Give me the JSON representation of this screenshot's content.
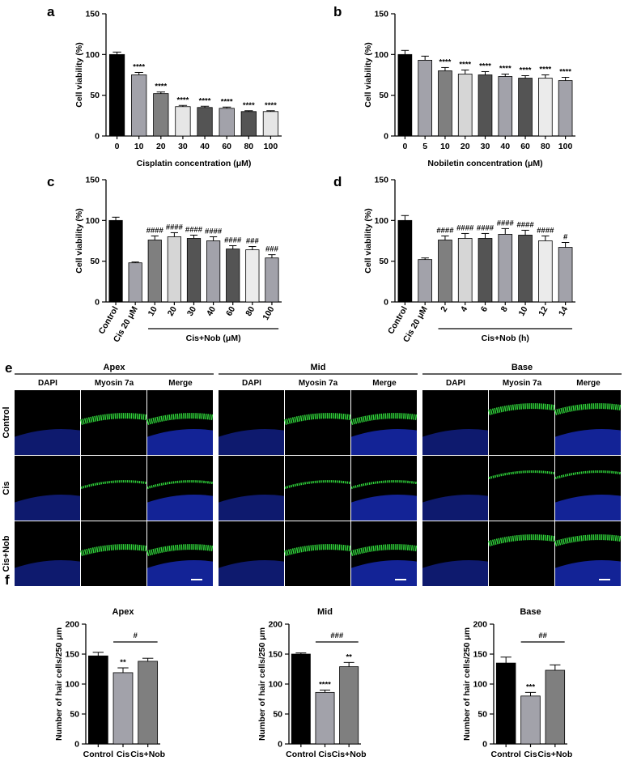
{
  "panel_labels": [
    "a",
    "b",
    "c",
    "d",
    "e",
    "f"
  ],
  "chart_data": [
    {
      "id": "a",
      "type": "bar",
      "categories": [
        "0",
        "10",
        "20",
        "30",
        "40",
        "60",
        "80",
        "100"
      ],
      "values": [
        100,
        75,
        52,
        36,
        35,
        34,
        30,
        30
      ],
      "errors": [
        3,
        3,
        2,
        1.5,
        1.5,
        1.5,
        1,
        1
      ],
      "sig": [
        "",
        "****",
        "****",
        "****",
        "****",
        "****",
        "****",
        "****"
      ],
      "colors": [
        "#000000",
        "#a2a2aa",
        "#7f7f7f",
        "#e6e6e6",
        "#545454",
        "#a2a2aa",
        "#545454",
        "#e6e6e6"
      ],
      "xlabel": "Cisplatin concentration (μM)",
      "ylabel": "Cell viability (%)",
      "ylim": [
        0,
        150
      ],
      "yticks": [
        0,
        50,
        100,
        150
      ]
    },
    {
      "id": "b",
      "type": "bar",
      "categories": [
        "0",
        "5",
        "10",
        "20",
        "30",
        "40",
        "60",
        "80",
        "100"
      ],
      "values": [
        100,
        93,
        80,
        76,
        75,
        73,
        71,
        71,
        68
      ],
      "errors": [
        5,
        5,
        4,
        5,
        4,
        3,
        3,
        4,
        4
      ],
      "sig": [
        "",
        "",
        "****",
        "****",
        "****",
        "****",
        "****",
        "****",
        "****"
      ],
      "colors": [
        "#000000",
        "#a2a2aa",
        "#7f7f7f",
        "#d6d6d6",
        "#545454",
        "#a2a2aa",
        "#545454",
        "#ebebeb",
        "#a2a2aa"
      ],
      "xlabel": "Nobiletin concentration (μM)",
      "ylabel": "Cell viability (%)",
      "ylim": [
        0,
        150
      ],
      "yticks": [
        0,
        50,
        100,
        150
      ]
    },
    {
      "id": "c",
      "type": "bar",
      "categories": [
        "Control",
        "Cis 20 μM",
        "10",
        "20",
        "30",
        "40",
        "60",
        "80",
        "100"
      ],
      "values": [
        100,
        48,
        76,
        80,
        78,
        75,
        65,
        64,
        54
      ],
      "errors": [
        4,
        1,
        5,
        5,
        4,
        5,
        4,
        4,
        4
      ],
      "sig": [
        "",
        "",
        "####",
        "####",
        "####",
        "####",
        "####",
        "###",
        "###"
      ],
      "colors": [
        "#000000",
        "#a2a2aa",
        "#7f7f7f",
        "#d6d6d6",
        "#545454",
        "#a2a2aa",
        "#545454",
        "#ebebeb",
        "#a2a2aa"
      ],
      "group_label": "Cis+Nob (μM)",
      "ylabel": "Cell viability (%)",
      "ylim": [
        0,
        150
      ],
      "yticks": [
        0,
        50,
        100,
        150
      ]
    },
    {
      "id": "d",
      "type": "bar",
      "categories": [
        "Control",
        "Cis 20 μM",
        "2",
        "4",
        "6",
        "8",
        "10",
        "12",
        "14"
      ],
      "values": [
        100,
        52,
        76,
        78,
        78,
        83,
        82,
        75,
        67
      ],
      "errors": [
        6,
        2,
        5,
        6,
        6,
        7,
        6,
        6,
        6
      ],
      "sig": [
        "",
        "",
        "####",
        "####",
        "####",
        "####",
        "####",
        "####",
        "#"
      ],
      "colors": [
        "#000000",
        "#a2a2aa",
        "#7f7f7f",
        "#d6d6d6",
        "#545454",
        "#a2a2aa",
        "#545454",
        "#ebebeb",
        "#a2a2aa"
      ],
      "group_label": "Cis+Nob (h)",
      "ylabel": "Cell viability (%)",
      "ylim": [
        0,
        150
      ],
      "yticks": [
        0,
        50,
        100,
        150
      ]
    },
    {
      "id": "f1",
      "type": "bar",
      "title": "Apex",
      "categories": [
        "Control",
        "Cis",
        "Cis+Nob"
      ],
      "values": [
        147,
        119,
        138
      ],
      "errors": [
        6,
        8,
        5
      ],
      "sig": [
        "",
        "**",
        ""
      ],
      "bracket": "#",
      "colors": [
        "#000000",
        "#a2a2aa",
        "#7f7f7f"
      ],
      "ylabel": "Number of hair cells/250 μm",
      "ylim": [
        0,
        200
      ],
      "yticks": [
        0,
        50,
        100,
        150,
        200
      ]
    },
    {
      "id": "f2",
      "type": "bar",
      "title": "Mid",
      "categories": [
        "Control",
        "Cis",
        "Cis+Nob"
      ],
      "values": [
        150,
        86,
        129
      ],
      "errors": [
        2,
        4,
        7
      ],
      "sig": [
        "",
        "****",
        "**"
      ],
      "bracket": "###",
      "colors": [
        "#000000",
        "#a2a2aa",
        "#7f7f7f"
      ],
      "ylabel": "Number of hair cells/250 μm",
      "ylim": [
        0,
        200
      ],
      "yticks": [
        0,
        50,
        100,
        150,
        200
      ]
    },
    {
      "id": "f3",
      "type": "bar",
      "title": "Base",
      "categories": [
        "Control",
        "Cis",
        "Cis+Nob"
      ],
      "values": [
        135,
        80,
        123
      ],
      "errors": [
        10,
        6,
        9
      ],
      "sig": [
        "",
        "***",
        ""
      ],
      "bracket": "##",
      "colors": [
        "#000000",
        "#a2a2aa",
        "#7f7f7f"
      ],
      "ylabel": "Number of hair cells/250 μm",
      "ylim": [
        0,
        200
      ],
      "yticks": [
        0,
        50,
        100,
        150,
        200
      ]
    }
  ],
  "micrograph": {
    "regions": [
      "Apex",
      "Mid",
      "Base"
    ],
    "channels": [
      "DAPI",
      "Myosin 7a",
      "Merge"
    ],
    "rows": [
      "Control",
      "Cis",
      "Cis+Nob"
    ],
    "colors": {
      "dapi": "#1a2fc8",
      "myosin": "#2fd43a",
      "background": "#000000"
    }
  }
}
